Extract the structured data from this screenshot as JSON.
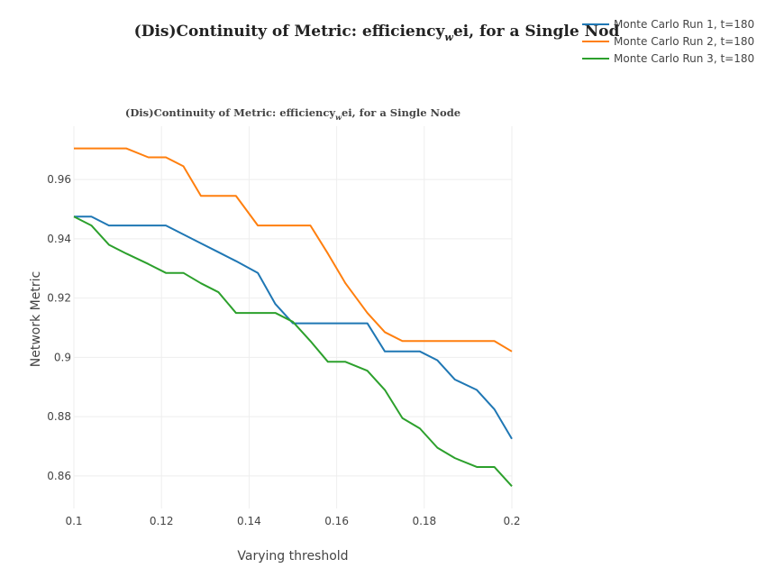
{
  "chart_data": {
    "type": "line",
    "title": "(Dis)Continuity of Metric: efficiency",
    "title_sub": "w",
    "title_rest": "ei, for a Single Nod",
    "subtitle": "(Dis)Continuity of Metric: efficiency",
    "subtitle_sub": "w",
    "subtitle_rest": "ei, for a Single Node",
    "xlabel": "Varying threshold",
    "ylabel": "Network Metric",
    "xlim": [
      0.1,
      0.2
    ],
    "ylim": [
      0.849,
      0.978
    ],
    "xticks": [
      0.1,
      0.12,
      0.14,
      0.16,
      0.18,
      0.2
    ],
    "xtick_labels": [
      "0.1",
      "0.12",
      "0.14",
      "0.16",
      "0.18",
      "0.2"
    ],
    "yticks": [
      0.86,
      0.88,
      0.9,
      0.92,
      0.94,
      0.96
    ],
    "ytick_labels": [
      "0.86",
      "0.88",
      "0.9",
      "0.92",
      "0.94",
      "0.96"
    ],
    "grid": true,
    "legend_position": "top-right",
    "x": [
      0.1,
      0.104,
      0.108,
      0.112,
      0.117,
      0.121,
      0.125,
      0.129,
      0.133,
      0.137,
      0.142,
      0.146,
      0.15,
      0.154,
      0.158,
      0.162,
      0.167,
      0.171,
      0.175,
      0.179,
      0.183,
      0.187,
      0.192,
      0.196,
      0.2
    ],
    "series": [
      {
        "name": "Monte Carlo Run 1, t=180",
        "color": "#1f77b4",
        "values": [
          0.9475,
          0.9475,
          0.9445,
          0.9445,
          0.9445,
          0.9445,
          0.9415,
          0.9385,
          0.9355,
          0.9325,
          0.9285,
          0.918,
          0.9115,
          0.9115,
          0.9115,
          0.9115,
          0.9115,
          0.902,
          0.902,
          0.902,
          0.899,
          0.8925,
          0.889,
          0.8825,
          0.8725
        ]
      },
      {
        "name": "Monte Carlo Run 2, t=180",
        "color": "#ff7f0e",
        "values": [
          0.9705,
          0.9705,
          0.9705,
          0.9705,
          0.9675,
          0.9675,
          0.9645,
          0.9545,
          0.9545,
          0.9545,
          0.9445,
          0.9445,
          0.9445,
          0.9445,
          0.935,
          0.925,
          0.915,
          0.9085,
          0.9055,
          0.9055,
          0.9055,
          0.9055,
          0.9055,
          0.9055,
          0.902
        ]
      },
      {
        "name": "Monte Carlo Run 3, t=180",
        "color": "#2ca02c",
        "values": [
          0.9475,
          0.9445,
          0.938,
          0.935,
          0.9315,
          0.9285,
          0.9285,
          0.925,
          0.922,
          0.915,
          0.915,
          0.915,
          0.912,
          0.9055,
          0.8985,
          0.8985,
          0.8955,
          0.889,
          0.8795,
          0.876,
          0.8695,
          0.866,
          0.863,
          0.863,
          0.8565
        ]
      }
    ]
  }
}
